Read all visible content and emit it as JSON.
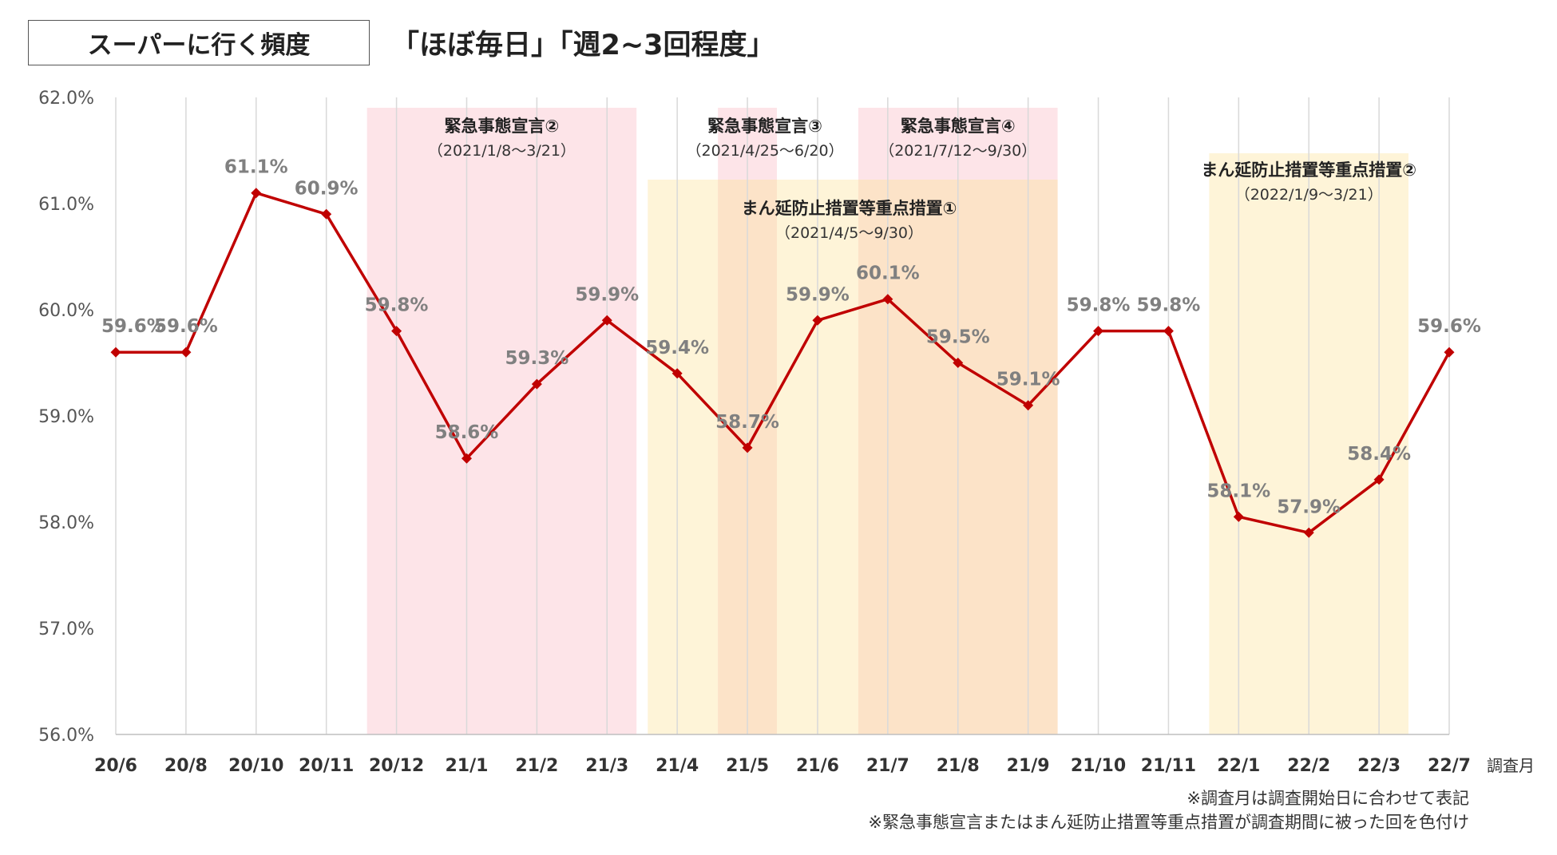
{
  "header": {
    "label": "スーパーに行く頻度",
    "subtitle": "「ほぼ毎日」「週2~3回程度」"
  },
  "notes": [
    "※調査月は調査開始日に合わせて表記",
    "※緊急事態宣言またはまん延防止措置等重点措置が調査期間に被った回を色付け"
  ],
  "chart_data": {
    "type": "line",
    "categories": [
      "20/6",
      "20/8",
      "20/10",
      "20/11",
      "20/12",
      "21/1",
      "21/2",
      "21/3",
      "21/4",
      "21/5",
      "21/6",
      "21/7",
      "21/8",
      "21/9",
      "21/10",
      "21/11",
      "22/1",
      "22/2",
      "22/3",
      "22/7"
    ],
    "values": [
      59.6,
      59.6,
      61.1,
      60.9,
      59.8,
      58.6,
      59.3,
      59.9,
      59.4,
      58.7,
      59.9,
      60.1,
      59.5,
      59.1,
      59.8,
      59.8,
      58.05,
      57.9,
      58.4,
      59.6
    ],
    "data_labels": [
      "59.6%",
      "59.6%",
      "61.1%",
      "60.9%",
      "59.8%",
      "58.6%",
      "59.3%",
      "59.9%",
      "59.4%",
      "58.7%",
      "59.9%",
      "60.1%",
      "59.5%",
      "59.1%",
      "59.8%",
      "59.8%",
      "58.1%",
      "57.9%",
      "58.4%",
      "59.6%"
    ],
    "ylim": [
      56.0,
      62.0
    ],
    "yticks": [
      56,
      57,
      58,
      59,
      60,
      61,
      62
    ],
    "ytick_labels": [
      "56.0%",
      "57.0%",
      "58.0%",
      "59.0%",
      "60.0%",
      "61.0%",
      "62.0%"
    ],
    "xlabel": "調査月",
    "ylabel": "",
    "grid": "vertical",
    "line_color": "#c00000",
    "label_color": "#808080",
    "bands": [
      {
        "from": "20/12",
        "to": "21/3",
        "kind": "emergency",
        "color": "#fde4e8",
        "title": "緊急事態宣言②",
        "range": "（2021/1/8～3/21）"
      },
      {
        "from": "21/4",
        "to": "21/9",
        "kind": "priority",
        "color": "#fef4d8",
        "title": "まん延防止措置等重点措置①",
        "range": "（2021/4/5～9/30）"
      },
      {
        "from": "21/5",
        "to": "21/5",
        "kind": "emergency",
        "color": "#fde4e8",
        "title": "緊急事態宣言③",
        "range": "（2021/4/25～6/20）"
      },
      {
        "from": "21/7",
        "to": "21/9",
        "kind": "emergency",
        "color": "#fde4e8",
        "title": "緊急事態宣言④",
        "range": "（2021/7/12～9/30）"
      },
      {
        "from": "22/1",
        "to": "22/3",
        "kind": "priority",
        "color": "#fef4d8",
        "title": "まん延防止措置等重点措置②",
        "range": "（2022/1/9～3/21）"
      }
    ],
    "overlap_color": "#fce3c8"
  }
}
